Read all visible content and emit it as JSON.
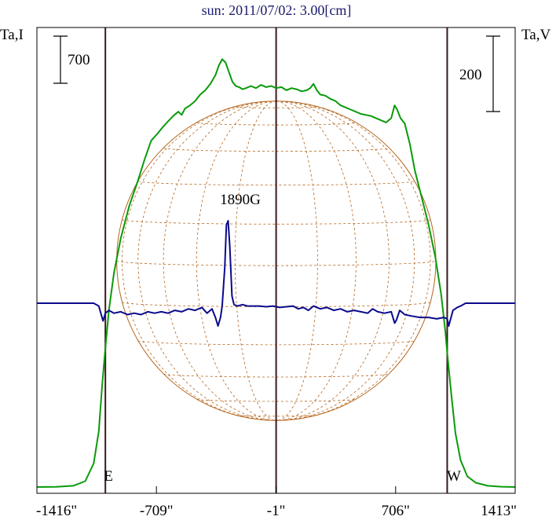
{
  "chart_data": {
    "type": "line",
    "title": "sun: 2011/07/02: 3.00[cm]",
    "left_axis_label": "Ta,I",
    "right_axis_label": "Ta,V",
    "x_unit": "arcsec",
    "xlim": [
      -1416,
      1413
    ],
    "x_ticks": [
      {
        "value": -1416,
        "label": "-1416\""
      },
      {
        "value": -709,
        "label": "-709\""
      },
      {
        "value": -1,
        "label": "-1\""
      },
      {
        "value": 706,
        "label": "706\""
      },
      {
        "value": 1413,
        "label": "1413\""
      }
    ],
    "limb_labels": {
      "east": "E",
      "west": "W"
    },
    "vertical_markers": [
      -1011,
      -1,
      1011
    ],
    "solar_radius_arcsec": 944,
    "scale_bars": [
      {
        "side": "left",
        "value": 700,
        "label": "700"
      },
      {
        "side": "right",
        "value": 200,
        "label": "200"
      }
    ],
    "annotation": {
      "text": "1890G",
      "x": -320
    },
    "colors": {
      "I": "#0a9a0a",
      "V": "#0a0a8c",
      "disk": "#b5651d",
      "markers": "#3a1a1a",
      "text": "#000000",
      "title": "#1a1a6e"
    },
    "series": [
      {
        "id": "I",
        "axis": "left",
        "points": [
          [
            -1416,
            0.0
          ],
          [
            -1300,
            2
          ],
          [
            -1200,
            12
          ],
          [
            -1130,
            55
          ],
          [
            -1080,
            220
          ],
          [
            -1050,
            520
          ],
          [
            -1030,
            950
          ],
          [
            -1011,
            1300
          ],
          [
            -990,
            1650
          ],
          [
            -960,
            2000
          ],
          [
            -920,
            2320
          ],
          [
            -870,
            2620
          ],
          [
            -820,
            2850
          ],
          [
            -780,
            3050
          ],
          [
            -740,
            3230
          ],
          [
            -700,
            3300
          ],
          [
            -670,
            3360
          ],
          [
            -640,
            3410
          ],
          [
            -610,
            3460
          ],
          [
            -580,
            3500
          ],
          [
            -560,
            3470
          ],
          [
            -540,
            3530
          ],
          [
            -510,
            3560
          ],
          [
            -480,
            3600
          ],
          [
            -450,
            3660
          ],
          [
            -420,
            3700
          ],
          [
            -390,
            3760
          ],
          [
            -360,
            3840
          ],
          [
            -340,
            3930
          ],
          [
            -320,
            3990
          ],
          [
            -300,
            3960
          ],
          [
            -280,
            3870
          ],
          [
            -260,
            3780
          ],
          [
            -240,
            3740
          ],
          [
            -220,
            3730
          ],
          [
            -200,
            3710
          ],
          [
            -180,
            3720
          ],
          [
            -150,
            3740
          ],
          [
            -120,
            3720
          ],
          [
            -90,
            3750
          ],
          [
            -60,
            3730
          ],
          [
            -30,
            3740
          ],
          [
            0,
            3720
          ],
          [
            30,
            3730
          ],
          [
            60,
            3700
          ],
          [
            90,
            3720
          ],
          [
            120,
            3710
          ],
          [
            150,
            3690
          ],
          [
            180,
            3700
          ],
          [
            200,
            3720
          ],
          [
            220,
            3760
          ],
          [
            240,
            3700
          ],
          [
            260,
            3660
          ],
          [
            290,
            3650
          ],
          [
            320,
            3620
          ],
          [
            350,
            3600
          ],
          [
            380,
            3560
          ],
          [
            410,
            3540
          ],
          [
            440,
            3520
          ],
          [
            470,
            3500
          ],
          [
            500,
            3480
          ],
          [
            530,
            3470
          ],
          [
            560,
            3460
          ],
          [
            590,
            3440
          ],
          [
            620,
            3420
          ],
          [
            650,
            3400
          ],
          [
            680,
            3440
          ],
          [
            700,
            3560
          ],
          [
            715,
            3520
          ],
          [
            735,
            3440
          ],
          [
            760,
            3390
          ],
          [
            790,
            3200
          ],
          [
            820,
            2950
          ],
          [
            860,
            2700
          ],
          [
            900,
            2450
          ],
          [
            940,
            2150
          ],
          [
            975,
            1800
          ],
          [
            1000,
            1450
          ],
          [
            1011,
            1250
          ],
          [
            1035,
            870
          ],
          [
            1060,
            500
          ],
          [
            1090,
            250
          ],
          [
            1130,
            100
          ],
          [
            1180,
            40
          ],
          [
            1250,
            12
          ],
          [
            1330,
            3
          ],
          [
            1413,
            0
          ]
        ]
      },
      {
        "id": "V",
        "axis": "right",
        "points": [
          [
            -1416,
            0
          ],
          [
            -1200,
            0
          ],
          [
            -1080,
            0
          ],
          [
            -1050,
            -4
          ],
          [
            -1025,
            -25
          ],
          [
            -1011,
            -14
          ],
          [
            -990,
            -10
          ],
          [
            -960,
            -14
          ],
          [
            -920,
            -12
          ],
          [
            -880,
            -16
          ],
          [
            -840,
            -14
          ],
          [
            -800,
            -16
          ],
          [
            -760,
            -12
          ],
          [
            -720,
            -14
          ],
          [
            -680,
            -12
          ],
          [
            -640,
            -14
          ],
          [
            -600,
            -10
          ],
          [
            -560,
            -12
          ],
          [
            -520,
            -8
          ],
          [
            -480,
            -10
          ],
          [
            -440,
            -6
          ],
          [
            -410,
            -14
          ],
          [
            -380,
            -8
          ],
          [
            -360,
            -20
          ],
          [
            -345,
            -32
          ],
          [
            -330,
            -20
          ],
          [
            -320,
            -4
          ],
          [
            -305,
            50
          ],
          [
            -295,
            110
          ],
          [
            -285,
            116
          ],
          [
            -275,
            80
          ],
          [
            -262,
            10
          ],
          [
            -250,
            -2
          ],
          [
            -230,
            -4
          ],
          [
            -200,
            -2
          ],
          [
            -170,
            -4
          ],
          [
            -140,
            -4
          ],
          [
            -100,
            -4
          ],
          [
            -60,
            -5
          ],
          [
            -20,
            -4
          ],
          [
            20,
            -6
          ],
          [
            60,
            -5
          ],
          [
            100,
            -4
          ],
          [
            130,
            -8
          ],
          [
            160,
            -6
          ],
          [
            190,
            -10
          ],
          [
            220,
            -4
          ],
          [
            260,
            -8
          ],
          [
            300,
            -6
          ],
          [
            340,
            -10
          ],
          [
            380,
            -8
          ],
          [
            420,
            -12
          ],
          [
            460,
            -10
          ],
          [
            500,
            -12
          ],
          [
            540,
            -14
          ],
          [
            570,
            -8
          ],
          [
            600,
            -12
          ],
          [
            640,
            -14
          ],
          [
            680,
            -12
          ],
          [
            700,
            -28
          ],
          [
            710,
            -24
          ],
          [
            730,
            -10
          ],
          [
            760,
            -16
          ],
          [
            800,
            -18
          ],
          [
            850,
            -20
          ],
          [
            900,
            -20
          ],
          [
            950,
            -22
          ],
          [
            990,
            -20
          ],
          [
            1011,
            -22
          ],
          [
            1020,
            -32
          ],
          [
            1045,
            -10
          ],
          [
            1070,
            -6
          ],
          [
            1090,
            -4
          ],
          [
            1120,
            0
          ],
          [
            1413,
            0
          ]
        ]
      }
    ]
  }
}
